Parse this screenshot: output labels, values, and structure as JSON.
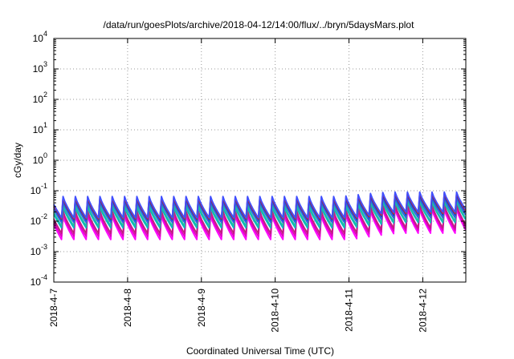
{
  "chart_data": {
    "type": "line",
    "title": "/data/run/goesPlots/archive/2018-04-12/14:00/flux/../bryn/5daysMars.plot",
    "xlabel": "Coordinated Universal Time (UTC)",
    "ylabel": "cGy/day",
    "xlim": [
      "2018-04-07 00:00",
      "2018-04-12 14:00"
    ],
    "x_ticks": [
      "2018-4-7",
      "2018-4-8",
      "2018-4-9",
      "2018-4-10",
      "2018-4-11",
      "2018-4-12"
    ],
    "y_scale": "log",
    "ylim": [
      0.0001,
      10000
    ],
    "y_ticks": [
      {
        "base": "10",
        "exp": "-4"
      },
      {
        "base": "10",
        "exp": "-3"
      },
      {
        "base": "10",
        "exp": "-2"
      },
      {
        "base": "10",
        "exp": "-1"
      },
      {
        "base": "10",
        "exp": "0"
      },
      {
        "base": "10",
        "exp": "1"
      },
      {
        "base": "10",
        "exp": "2"
      },
      {
        "base": "10",
        "exp": "3"
      },
      {
        "base": "10",
        "exp": "4"
      }
    ],
    "grid": true,
    "legend": "none",
    "pattern": {
      "description_of_shape": "sawtooth: sharp rise then decay, repeating",
      "periods_per_day": 6,
      "first_peak_time": "2018-04-07 03:00"
    },
    "series": [
      {
        "color": "#ff00ff",
        "peak": 0.015,
        "trough": 0.0025,
        "late_peak": 0.025,
        "late_trough": 0.004
      },
      {
        "color": "#e000c0",
        "peak": 0.018,
        "trough": 0.0032,
        "late_peak": 0.03,
        "late_trough": 0.005
      },
      {
        "color": "#c02080",
        "peak": 0.022,
        "trough": 0.004,
        "late_peak": 0.035,
        "late_trough": 0.006
      },
      {
        "color": "#00b4c8",
        "peak": 0.03,
        "trough": 0.006,
        "late_peak": 0.045,
        "late_trough": 0.009
      },
      {
        "color": "#20c0a0",
        "peak": 0.035,
        "trough": 0.007,
        "late_peak": 0.05,
        "late_trough": 0.01
      },
      {
        "color": "#3060e0",
        "peak": 0.045,
        "trough": 0.009,
        "late_peak": 0.06,
        "late_trough": 0.013
      },
      {
        "color": "#1040c0",
        "peak": 0.055,
        "trough": 0.011,
        "late_peak": 0.075,
        "late_trough": 0.016
      },
      {
        "color": "#e02020",
        "peak": 0.06,
        "trough": 0.012,
        "late_peak": 0.085,
        "late_trough": 0.018
      },
      {
        "color": "#4050ff",
        "peak": 0.065,
        "trough": 0.013,
        "late_peak": 0.09,
        "late_trough": 0.02
      }
    ]
  }
}
